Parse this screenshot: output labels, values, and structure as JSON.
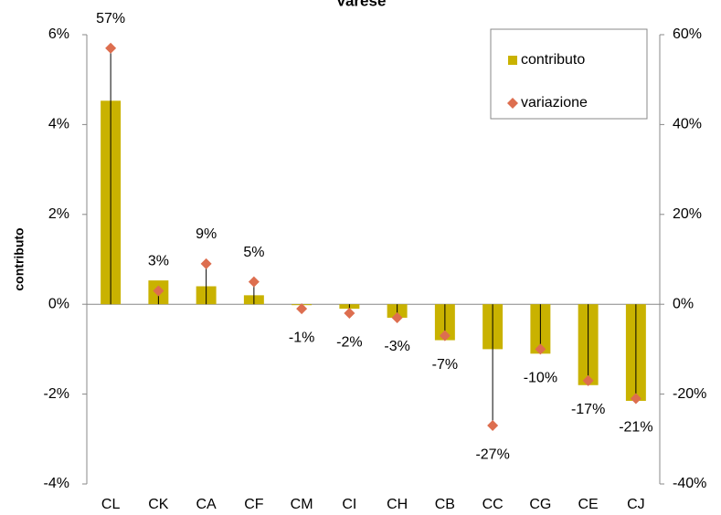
{
  "chart_data": {
    "type": "bar",
    "title": "Varese",
    "y_label": "contributo",
    "categories": [
      "CL",
      "CK",
      "CA",
      "CF",
      "CM",
      "CI",
      "CH",
      "CB",
      "CC",
      "CG",
      "CE",
      "CJ"
    ],
    "series": [
      {
        "name": "contributo",
        "type": "bar",
        "color": "#c9b200",
        "values": [
          4.53,
          0.53,
          0.4,
          0.2,
          -0.02,
          -0.1,
          -0.3,
          -0.8,
          -1.0,
          -1.1,
          -1.8,
          -2.15
        ]
      },
      {
        "name": "variazione",
        "type": "scatter",
        "axis": "y2",
        "color": "#dd6e4f",
        "values": [
          57,
          3,
          9,
          5,
          -1,
          -2,
          -3,
          -7,
          -27,
          -10,
          -17,
          -21
        ],
        "value_labels": [
          "57%",
          "3%",
          "9%",
          "5%",
          "-1%",
          "-2%",
          "-3%",
          "-7%",
          "-27%",
          "-10%",
          "-17%",
          "-21%"
        ]
      }
    ],
    "ylim": [
      -4,
      6
    ],
    "yticks": [
      {
        "value": -4,
        "label": "-4%"
      },
      {
        "value": -2,
        "label": "-2%"
      },
      {
        "value": 0,
        "label": "0%"
      },
      {
        "value": 2,
        "label": "2%"
      },
      {
        "value": 4,
        "label": "4%"
      },
      {
        "value": 6,
        "label": "6%"
      }
    ],
    "y2lim": [
      -40,
      60
    ],
    "y2ticks": [
      {
        "value": -40,
        "label": "-40%"
      },
      {
        "value": -20,
        "label": "-20%"
      },
      {
        "value": 0,
        "label": "0%"
      },
      {
        "value": 20,
        "label": "20%"
      },
      {
        "value": 40,
        "label": "40%"
      },
      {
        "value": 60,
        "label": "60%"
      }
    ],
    "legend": "top-right",
    "drop_lines": true
  }
}
